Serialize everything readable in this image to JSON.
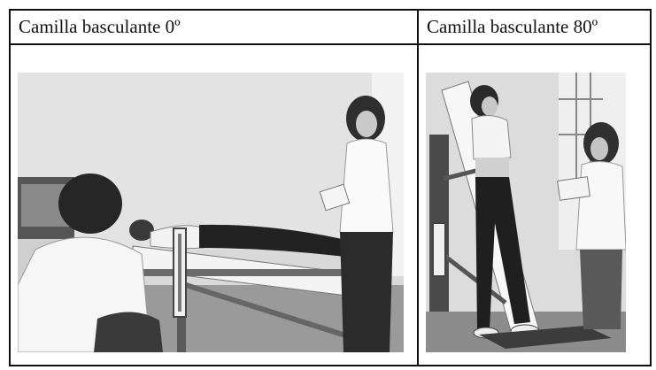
{
  "table": {
    "columns": [
      {
        "caption": "Camilla basculante 0º",
        "photo_icon": "tilt-table-horizontal-photo"
      },
      {
        "caption": "Camilla basculante 80º",
        "photo_icon": "tilt-table-tilted-photo"
      }
    ]
  }
}
